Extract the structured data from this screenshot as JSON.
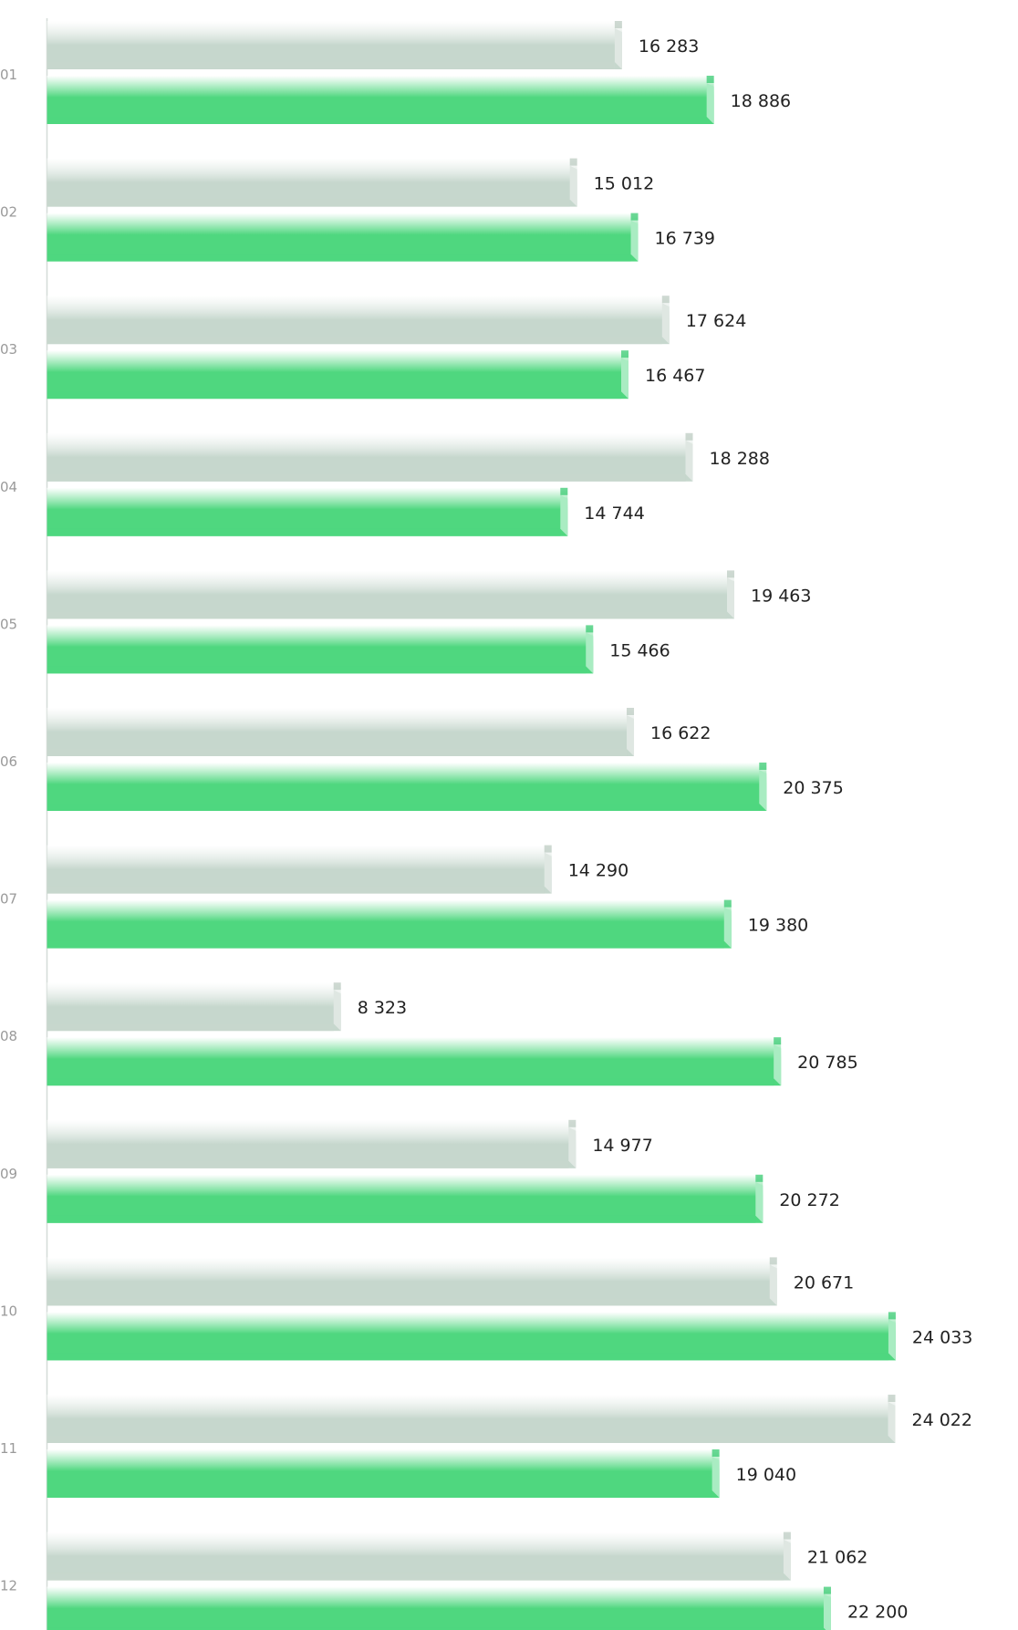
{
  "chart_data": {
    "type": "hbar",
    "categories": [
      "01",
      "02",
      "03",
      "04",
      "05",
      "06",
      "07",
      "08",
      "09",
      "10",
      "11",
      "12"
    ],
    "xlim": [
      0,
      24500
    ],
    "series": [
      {
        "color": "#c6d7cd",
        "values": [
          16283,
          15012,
          17624,
          18288,
          19463,
          16622,
          14290,
          8323,
          14977,
          20671,
          24022,
          21062
        ],
        "value_labels": [
          "16 283",
          "15 012",
          "17 624",
          "18 288",
          "19 463",
          "16 622",
          "14 290",
          "8 323",
          "14 977",
          "20 671",
          "24 022",
          "21 062"
        ]
      },
      {
        "color": "#4fd77f",
        "values": [
          18886,
          16739,
          16467,
          14744,
          15466,
          20375,
          19380,
          20785,
          20272,
          24033,
          19040,
          22200
        ],
        "value_labels": [
          "18 886",
          "16 739",
          "16 467",
          "14 744",
          "15 466",
          "20 375",
          "19 380",
          "20 785",
          "20 272",
          "24 033",
          "19 040",
          "22 200"
        ]
      }
    ]
  }
}
